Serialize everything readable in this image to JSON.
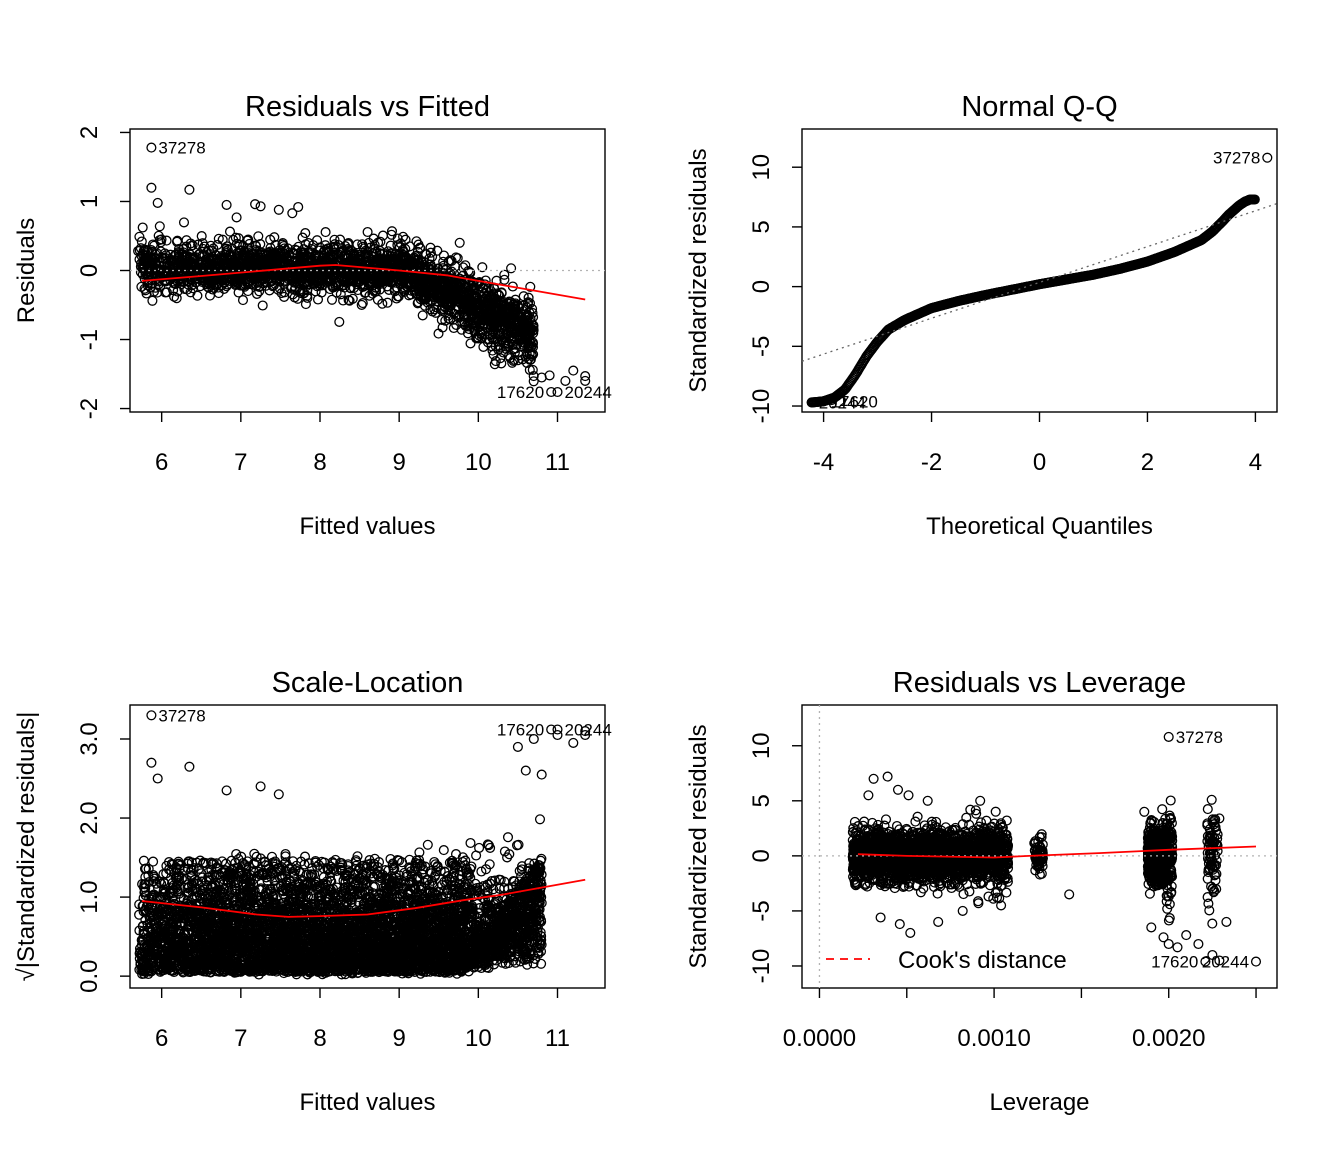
{
  "chart_data": [
    {
      "type": "scatter",
      "title": "Residuals vs Fitted",
      "xlabel": "Fitted values",
      "ylabel": "Residuals",
      "xlim": [
        5.6,
        11.6
      ],
      "ylim": [
        -2.05,
        2.05
      ],
      "xticks": [
        6,
        7,
        8,
        9,
        10,
        11
      ],
      "yticks": [
        -2,
        -1,
        0,
        1,
        2
      ],
      "reference_line": {
        "y": 0,
        "style": "dotted",
        "color": "#b3b3b3"
      },
      "smoother": {
        "color": "#ff0000",
        "x": [
          5.75,
          6.5,
          7.2,
          8.0,
          8.2,
          9.0,
          9.6,
          10.0,
          10.6,
          11.35
        ],
        "y": [
          -0.15,
          -0.08,
          -0.01,
          0.07,
          0.08,
          0.0,
          -0.07,
          -0.15,
          -0.27,
          -0.42
        ]
      },
      "cloud": {
        "x_range": [
          5.7,
          11.3
        ],
        "note": ""
      },
      "labeled_points": [
        {
          "label": "37278",
          "x": 5.87,
          "y": 1.78,
          "side": "right"
        },
        {
          "label": "17620",
          "x": 10.92,
          "y": -1.76,
          "side": "left"
        },
        {
          "label": "20244",
          "x": 11.0,
          "y": -1.76,
          "side": "right"
        }
      ],
      "extreme_points": [
        [
          5.87,
          1.2
        ],
        [
          5.95,
          0.98
        ],
        [
          6.35,
          1.17
        ],
        [
          6.82,
          0.95
        ],
        [
          7.18,
          0.96
        ],
        [
          7.25,
          0.93
        ],
        [
          7.48,
          0.88
        ],
        [
          7.65,
          0.83
        ],
        [
          10.5,
          -1.3
        ],
        [
          10.65,
          -1.44
        ],
        [
          10.8,
          -1.55
        ],
        [
          10.9,
          -1.52
        ],
        [
          11.1,
          -1.6
        ],
        [
          11.2,
          -1.45
        ],
        [
          11.35,
          -1.53
        ],
        [
          11.35,
          -1.6
        ],
        [
          10.2,
          -1.0
        ],
        [
          10.35,
          -1.1
        ],
        [
          10.6,
          -1.25
        ]
      ],
      "fit": {
        "a": -0.05,
        "k": 0.7
      }
    },
    {
      "type": "scatter",
      "title": "Normal Q-Q",
      "xlabel": "Theoretical Quantiles",
      "ylabel": "Standardized residuals",
      "xlim": [
        -4.4,
        4.4
      ],
      "ylim": [
        -10.5,
        13.2
      ],
      "xticks": [
        -4,
        -2,
        0,
        2,
        4
      ],
      "yticks": [
        -10,
        -5,
        0,
        5,
        10
      ],
      "reference_line": {
        "slope": 1.5,
        "intercept": 0.35,
        "style": "dotted",
        "color": "#666666"
      },
      "labeled_points": [
        {
          "label": "37278",
          "x": 4.22,
          "y": 10.8,
          "side": "left"
        },
        {
          "label": "20244",
          "x": -4.22,
          "y": -9.7,
          "side": "right"
        },
        {
          "label": "17620",
          "x": -4.0,
          "y": -9.6,
          "side": "right"
        },
        {
          "label": "1",
          "x": -3.85,
          "y": -9.5,
          "side": "right"
        }
      ],
      "qq_curve": {
        "x": [
          -4.22,
          -4.0,
          -3.8,
          -3.6,
          -3.4,
          -3.2,
          -3.0,
          -2.8,
          -2.5,
          -2.0,
          -1.5,
          -1.0,
          0.0,
          1.0,
          1.5,
          2.0,
          2.5,
          2.8,
          3.0,
          3.2,
          3.4,
          3.5,
          3.6,
          3.7,
          3.8,
          3.9,
          4.0
        ],
        "y": [
          -9.7,
          -9.6,
          -9.3,
          -8.6,
          -7.3,
          -5.8,
          -4.6,
          -3.6,
          -2.8,
          -1.8,
          -1.2,
          -0.7,
          0.2,
          1.0,
          1.5,
          2.1,
          2.9,
          3.5,
          3.9,
          4.6,
          5.5,
          6.0,
          6.4,
          6.8,
          7.1,
          7.3,
          7.3
        ]
      }
    },
    {
      "type": "scatter",
      "title": "Scale-Location",
      "xlabel": "Fitted values",
      "ylabel": "√|Standardized residuals|",
      "xlim": [
        5.6,
        11.6
      ],
      "ylim": [
        -0.15,
        3.43
      ],
      "xticks": [
        6,
        7,
        8,
        9,
        10,
        11
      ],
      "yticks": [
        0.0,
        1.0,
        2.0,
        3.0
      ],
      "ytick_labels": [
        "0.0",
        "1.0",
        "2.0",
        "3.0"
      ],
      "smoother": {
        "color": "#ff0000",
        "x": [
          5.75,
          6.5,
          7.2,
          7.6,
          8.0,
          8.6,
          9.2,
          9.8,
          10.3,
          11.35
        ],
        "y": [
          0.95,
          0.87,
          0.78,
          0.75,
          0.76,
          0.78,
          0.86,
          0.96,
          1.03,
          1.22
        ]
      },
      "labeled_points": [
        {
          "label": "37278",
          "x": 5.87,
          "y": 3.3,
          "side": "right"
        },
        {
          "label": "17620",
          "x": 10.92,
          "y": 3.12,
          "side": "left"
        },
        {
          "label": "20244",
          "x": 11.0,
          "y": 3.12,
          "side": "right"
        }
      ],
      "extreme_points": [
        [
          5.87,
          2.7
        ],
        [
          5.95,
          2.5
        ],
        [
          6.35,
          2.65
        ],
        [
          6.82,
          2.35
        ],
        [
          7.25,
          2.4
        ],
        [
          7.48,
          2.3
        ],
        [
          10.5,
          2.9
        ],
        [
          10.7,
          3.0
        ],
        [
          11.0,
          3.05
        ],
        [
          11.2,
          2.95
        ],
        [
          11.35,
          3.05
        ],
        [
          11.35,
          3.1
        ],
        [
          10.8,
          2.55
        ],
        [
          10.6,
          2.6
        ]
      ]
    },
    {
      "type": "scatter",
      "title": "Residuals vs Leverage",
      "xlabel": "Leverage",
      "ylabel": "Standardized residuals",
      "xlim": [
        -0.0001,
        0.00262
      ],
      "ylim": [
        -12.0,
        13.7
      ],
      "xticks": [
        0.0,
        0.0005,
        0.001,
        0.0015,
        0.002,
        0.0025
      ],
      "xtick_labels": [
        "0.0000",
        "",
        "0.0010",
        "",
        "0.0020",
        ""
      ],
      "yticks": [
        -10,
        -5,
        0,
        5,
        10
      ],
      "reference_lines": [
        {
          "y": 0,
          "style": "dotted",
          "color": "#b3b3b3"
        },
        {
          "x": 0,
          "style": "dotted",
          "color": "#b3b3b3"
        }
      ],
      "smoother": {
        "color": "#ff0000",
        "x": [
          0.00022,
          0.0005,
          0.001,
          0.0012,
          0.0016,
          0.002,
          0.0025
        ],
        "y": [
          0.15,
          0.0,
          -0.15,
          0.0,
          0.25,
          0.55,
          0.85
        ]
      },
      "clusters": [
        {
          "x": [
            0.00019,
            0.00075
          ],
          "sd": 1.1
        },
        {
          "x": [
            0.00075,
            0.00108
          ],
          "sd": 1.3
        },
        {
          "x": [
            0.00123,
            0.00128
          ],
          "sd": 0.9
        },
        {
          "x": [
            0.00188,
            0.00198
          ],
          "sd": 1.3
        },
        {
          "x": [
            0.00198,
            0.00202
          ],
          "sd": 2.0
        },
        {
          "x": [
            0.00222,
            0.00228
          ],
          "sd": 2.2
        }
      ],
      "labeled_points": [
        {
          "label": "37278",
          "x": 0.002,
          "y": 10.8,
          "side": "right"
        },
        {
          "label": "17620",
          "x": 0.00221,
          "y": -9.6,
          "side": "left"
        },
        {
          "label": "20244",
          "x": 0.0025,
          "y": -9.6,
          "side": "left"
        }
      ],
      "extreme_points": [
        [
          0.00028,
          5.5
        ],
        [
          0.00031,
          7.0
        ],
        [
          0.00039,
          7.2
        ],
        [
          0.00045,
          6.0
        ],
        [
          0.00051,
          5.5
        ],
        [
          0.00062,
          5.0
        ],
        [
          0.00035,
          -5.6
        ],
        [
          0.00046,
          -6.2
        ],
        [
          0.00052,
          -7.0
        ],
        [
          0.00068,
          -6.0
        ],
        [
          0.00082,
          -5.0
        ],
        [
          0.00091,
          -4.3
        ],
        [
          0.00104,
          -4.5
        ],
        [
          0.00143,
          -3.5
        ],
        [
          0.0019,
          -6.5
        ],
        [
          0.00197,
          -7.4
        ],
        [
          0.002,
          -8.0
        ],
        [
          0.00205,
          -8.3
        ],
        [
          0.0021,
          -7.2
        ],
        [
          0.00217,
          -8.0
        ],
        [
          0.00225,
          -9.0
        ],
        [
          0.00229,
          -9.5
        ],
        [
          0.00233,
          -6.0
        ],
        [
          0.00226,
          3.2
        ],
        [
          0.00229,
          3.4
        ],
        [
          0.00186,
          4.0
        ]
      ],
      "legend": {
        "label": "Cook's distance",
        "line_color": "#ff0000",
        "line_style": "dashed",
        "placement": "bottom-left"
      }
    }
  ]
}
